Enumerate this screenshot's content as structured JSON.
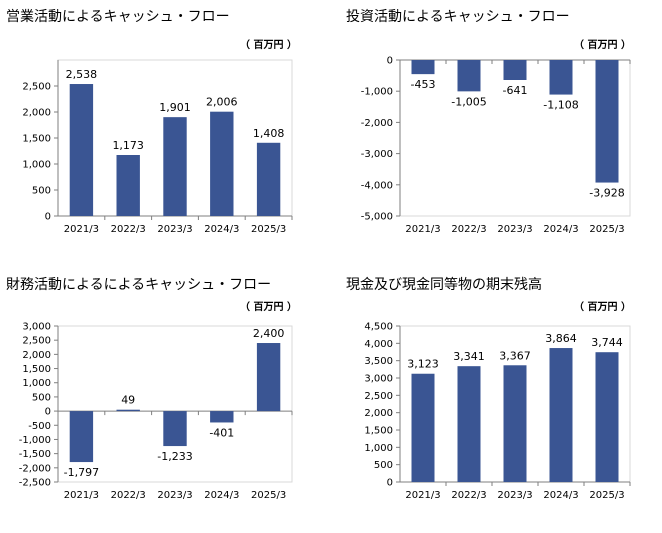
{
  "panels": [
    {
      "title": "営業活動によるキャッシュ・フロー",
      "unit": "（ 百万円 ）"
    },
    {
      "title": "投資活動によるキャッシュ・フロー",
      "unit": "（ 百万円 ）"
    },
    {
      "title": "財務活動によるによるキャッシュ・フロー",
      "unit": "（ 百万円 ）"
    },
    {
      "title": "現金及び現金同等物の期末残高",
      "unit": "（ 百万円 ）"
    }
  ],
  "chart_data": [
    {
      "type": "bar",
      "title": "営業活動によるキャッシュ・フロー",
      "unit": "百万円",
      "categories": [
        "2021/3",
        "2022/3",
        "2023/3",
        "2024/3",
        "2025/3"
      ],
      "values": [
        2538,
        1173,
        1901,
        2006,
        1408
      ],
      "data_labels": [
        "2,538",
        "1,173",
        "1,901",
        "2,006",
        "1,408"
      ],
      "ylim": [
        0,
        3000
      ],
      "yticks": [
        0,
        500,
        1000,
        1500,
        2000,
        2500
      ],
      "ytick_labels": [
        "0",
        "500",
        "1,000",
        "1,500",
        "2,000",
        "2,500"
      ],
      "color": "#3A5593",
      "grid": false
    },
    {
      "type": "bar",
      "title": "投資活動によるキャッシュ・フロー",
      "unit": "百万円",
      "categories": [
        "2021/3",
        "2022/3",
        "2023/3",
        "2024/3",
        "2025/3"
      ],
      "values": [
        -453,
        -1005,
        -641,
        -1108,
        -3928
      ],
      "data_labels": [
        "-453",
        "-1,005",
        "-641",
        "-1,108",
        "-3,928"
      ],
      "ylim": [
        -5000,
        0
      ],
      "yticks": [
        0,
        -1000,
        -2000,
        -3000,
        -4000,
        -5000
      ],
      "ytick_labels": [
        "0",
        "-1,000",
        "-2,000",
        "-3,000",
        "-4,000",
        "-5,000"
      ],
      "color": "#3A5593",
      "grid": false
    },
    {
      "type": "bar",
      "title": "財務活動によるによるキャッシュ・フロー",
      "unit": "百万円",
      "categories": [
        "2021/3",
        "2022/3",
        "2023/3",
        "2024/3",
        "2025/3"
      ],
      "values": [
        -1797,
        49,
        -1233,
        -401,
        2400
      ],
      "data_labels": [
        "-1,797",
        "49",
        "-1,233",
        "-401",
        "2,400"
      ],
      "ylim": [
        -2500,
        3000
      ],
      "yticks": [
        3000,
        2500,
        2000,
        1500,
        1000,
        500,
        0,
        -500,
        -1000,
        -1500,
        -2000,
        -2500
      ],
      "ytick_labels": [
        "3,000",
        "2,500",
        "2,000",
        "1,500",
        "1,000",
        "500",
        "0",
        "-500",
        "-1,000",
        "-1,500",
        "-2,000",
        "-2,500"
      ],
      "color": "#3A5593",
      "grid": false
    },
    {
      "type": "bar",
      "title": "現金及び現金同等物の期末残高",
      "unit": "百万円",
      "categories": [
        "2021/3",
        "2022/3",
        "2023/3",
        "2024/3",
        "2025/3"
      ],
      "values": [
        3123,
        3341,
        3367,
        3864,
        3744
      ],
      "data_labels": [
        "3,123",
        "3,341",
        "3,367",
        "3,864",
        "3,744"
      ],
      "ylim": [
        0,
        4500
      ],
      "yticks": [
        0,
        500,
        1000,
        1500,
        2000,
        2500,
        3000,
        3500,
        4000,
        4500
      ],
      "ytick_labels": [
        "0",
        "500",
        "1,000",
        "1,500",
        "2,000",
        "2,500",
        "3,000",
        "3,500",
        "4,000",
        "4,500"
      ],
      "color": "#3A5593",
      "grid": false
    }
  ]
}
